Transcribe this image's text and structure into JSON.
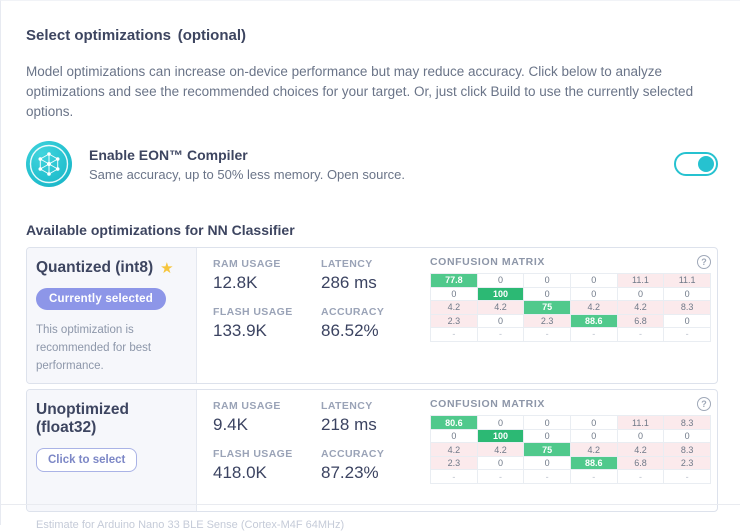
{
  "header": {
    "title": "Select optimizations",
    "title_suffix": "(optional)",
    "description": "Model optimizations can increase on-device performance but may reduce accuracy. Click below to analyze optimizations and see the recommended choices for your target. Or, just click Build to use the currently selected options."
  },
  "eon": {
    "title": "Enable EON™ Compiler",
    "subtitle": "Same accuracy, up to 50% less memory. Open source.",
    "toggle_state": "on"
  },
  "section": {
    "heading": "Available optimizations for NN Classifier"
  },
  "icons": {
    "star-icon": "★",
    "help-icon": "?"
  },
  "options": [
    {
      "name": "Quantized (int8)",
      "starred": true,
      "badge": "Currently selected",
      "note": "This optimization is recommended for best performance.",
      "stats": [
        {
          "label": "RAM USAGE",
          "value": "12.8K"
        },
        {
          "label": "LATENCY",
          "value": "286 ms"
        },
        {
          "label": "FLASH USAGE",
          "value": "133.9K"
        },
        {
          "label": "ACCURACY",
          "value": "86.52%"
        }
      ],
      "confusion_matrix": {
        "title": "CONFUSION MATRIX",
        "rows": [
          [
            "77.8",
            "0",
            "0",
            "0",
            "11.1",
            "11.1"
          ],
          [
            "0",
            "100",
            "0",
            "0",
            "0",
            "0"
          ],
          [
            "4.2",
            "4.2",
            "75",
            "4.2",
            "4.2",
            "8.3"
          ],
          [
            "2.3",
            "0",
            "2.3",
            "88.6",
            "6.8",
            "0"
          ],
          [
            "-",
            "-",
            "-",
            "-",
            "-",
            "-"
          ]
        ]
      }
    },
    {
      "name": "Unoptimized (float32)",
      "starred": false,
      "button": "Click to select",
      "stats": [
        {
          "label": "RAM USAGE",
          "value": "9.4K"
        },
        {
          "label": "LATENCY",
          "value": "218 ms"
        },
        {
          "label": "FLASH USAGE",
          "value": "418.0K"
        },
        {
          "label": "ACCURACY",
          "value": "87.23%"
        }
      ],
      "confusion_matrix": {
        "title": "CONFUSION MATRIX",
        "rows": [
          [
            "80.6",
            "0",
            "0",
            "0",
            "11.1",
            "8.3"
          ],
          [
            "0",
            "100",
            "0",
            "0",
            "0",
            "0"
          ],
          [
            "4.2",
            "4.2",
            "75",
            "4.2",
            "4.2",
            "8.3"
          ],
          [
            "2.3",
            "0",
            "0",
            "88.6",
            "6.8",
            "2.3"
          ],
          [
            "-",
            "-",
            "-",
            "-",
            "-",
            "-"
          ]
        ]
      }
    }
  ],
  "footer": {
    "estimate": "Estimate for Arduino Nano 33 BLE Sense (Cortex-M4F 64MHz)"
  },
  "colors": {
    "accent": "#26c2d0",
    "badge": "#8d96e8",
    "star": "#f6c53c",
    "green": "#50c98c",
    "green-full": "#2cb974",
    "pink": "#fbeaec"
  }
}
